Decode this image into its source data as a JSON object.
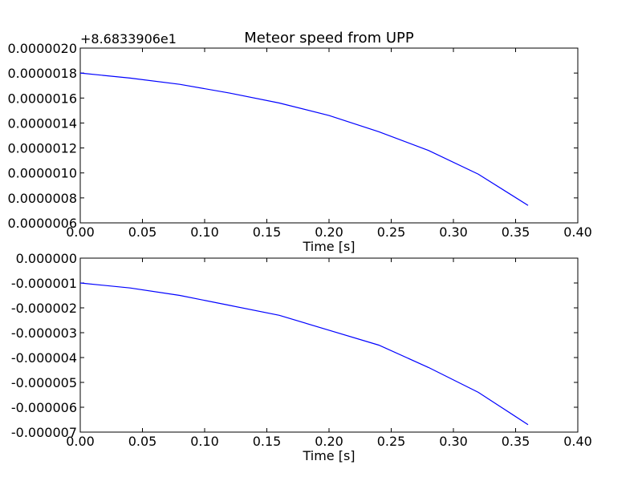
{
  "figure": {
    "title": "Meteor speed from  UPP"
  },
  "chart_data": [
    {
      "type": "line",
      "title": "Meteor speed from  UPP",
      "xlabel": "Time [s]",
      "ylabel": "",
      "y_offset_label": "+8.6833906e1",
      "xlim": [
        0.0,
        0.4
      ],
      "ylim": [
        6e-07,
        2e-06
      ],
      "x_ticks": [
        "0.00",
        "0.05",
        "0.10",
        "0.15",
        "0.20",
        "0.25",
        "0.30",
        "0.35",
        "0.40"
      ],
      "y_ticks": [
        "0.0000006",
        "0.0000008",
        "0.0000010",
        "0.0000012",
        "0.0000014",
        "0.0000016",
        "0.0000018",
        "0.0000020"
      ],
      "grid": false,
      "series": [
        {
          "color": "#0000ff",
          "x": [
            0.0,
            0.04,
            0.08,
            0.12,
            0.16,
            0.2,
            0.24,
            0.28,
            0.32,
            0.36
          ],
          "y": [
            1.8e-06,
            1.76e-06,
            1.71e-06,
            1.64e-06,
            1.56e-06,
            1.46e-06,
            1.33e-06,
            1.18e-06,
            9.9e-07,
            7.4e-07
          ]
        }
      ]
    },
    {
      "type": "line",
      "title": "",
      "xlabel": "Time [s]",
      "ylabel": "",
      "xlim": [
        0.0,
        0.4
      ],
      "ylim": [
        -7e-06,
        0.0
      ],
      "x_ticks": [
        "0.00",
        "0.05",
        "0.10",
        "0.15",
        "0.20",
        "0.25",
        "0.30",
        "0.35",
        "0.40"
      ],
      "y_ticks": [
        "-0.000007",
        "-0.000006",
        "-0.000005",
        "-0.000004",
        "-0.000003",
        "-0.000002",
        "-0.000001",
        "0.000000"
      ],
      "grid": false,
      "series": [
        {
          "color": "#0000ff",
          "x": [
            0.0,
            0.04,
            0.08,
            0.12,
            0.16,
            0.2,
            0.24,
            0.28,
            0.32,
            0.36
          ],
          "y": [
            -1e-06,
            -1.2e-06,
            -1.5e-06,
            -1.9e-06,
            -2.3e-06,
            -2.9e-06,
            -3.5e-06,
            -4.4e-06,
            -5.4e-06,
            -6.7e-06
          ]
        }
      ]
    }
  ]
}
